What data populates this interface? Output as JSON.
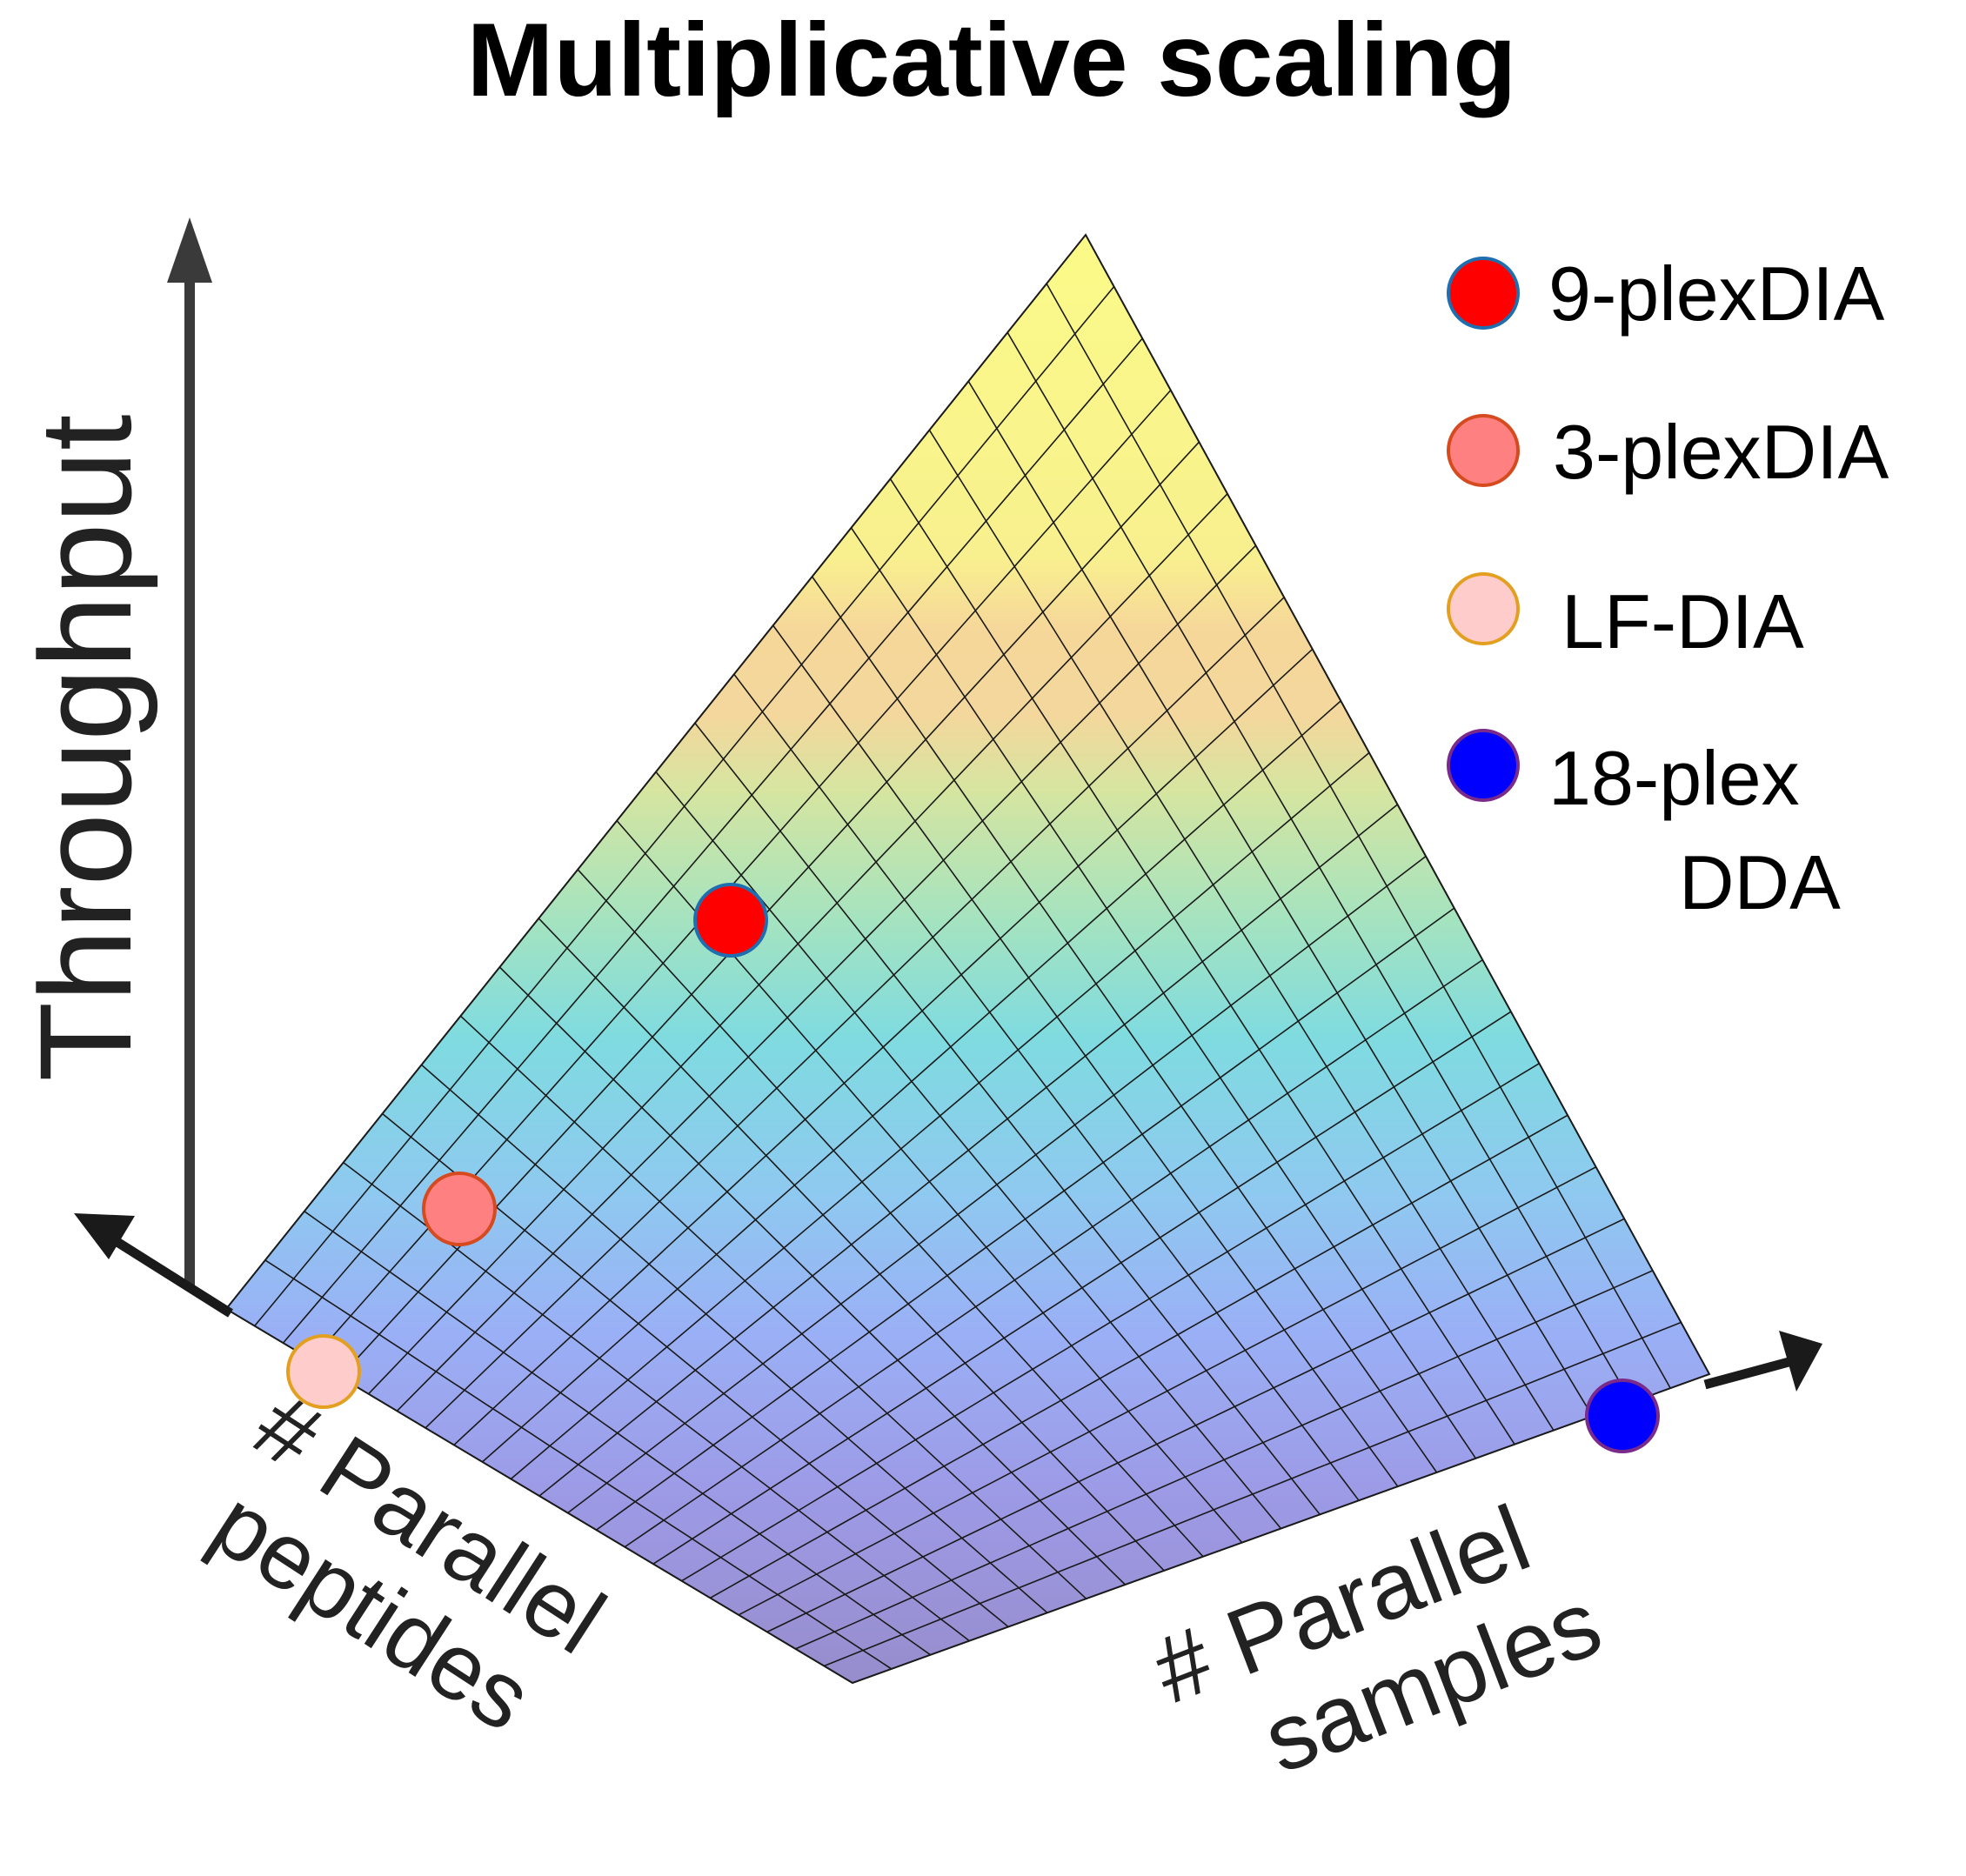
{
  "title": "Multiplicative scaling",
  "axes": {
    "y_label": "Throughput",
    "x_left_label_line1": "# Parallel",
    "x_left_label_line2": "peptides",
    "x_right_label_line1": "# Parallel",
    "x_right_label_line2": "samples"
  },
  "legend": [
    {
      "label": "9-plexDIA",
      "fill": "#ff0000",
      "stroke": "#1f6fb0"
    },
    {
      "label": "3-plexDIA",
      "fill": "#ff8080",
      "stroke": "#d64a1f"
    },
    {
      "label": "LF-DIA",
      "fill": "#ffcccc",
      "stroke": "#e3a020"
    },
    {
      "label": "18-plex",
      "label_line2": "DDA",
      "fill": "#0000ff",
      "stroke": "#7a2a8a"
    }
  ],
  "surface": {
    "colors": {
      "low": "#9a8fd9",
      "mid_low": "#9ab5f5",
      "mid": "#7fdbe0",
      "mid_high": "#d6e5a0",
      "band": "#f6d79a",
      "high": "#fbfb88"
    }
  }
}
